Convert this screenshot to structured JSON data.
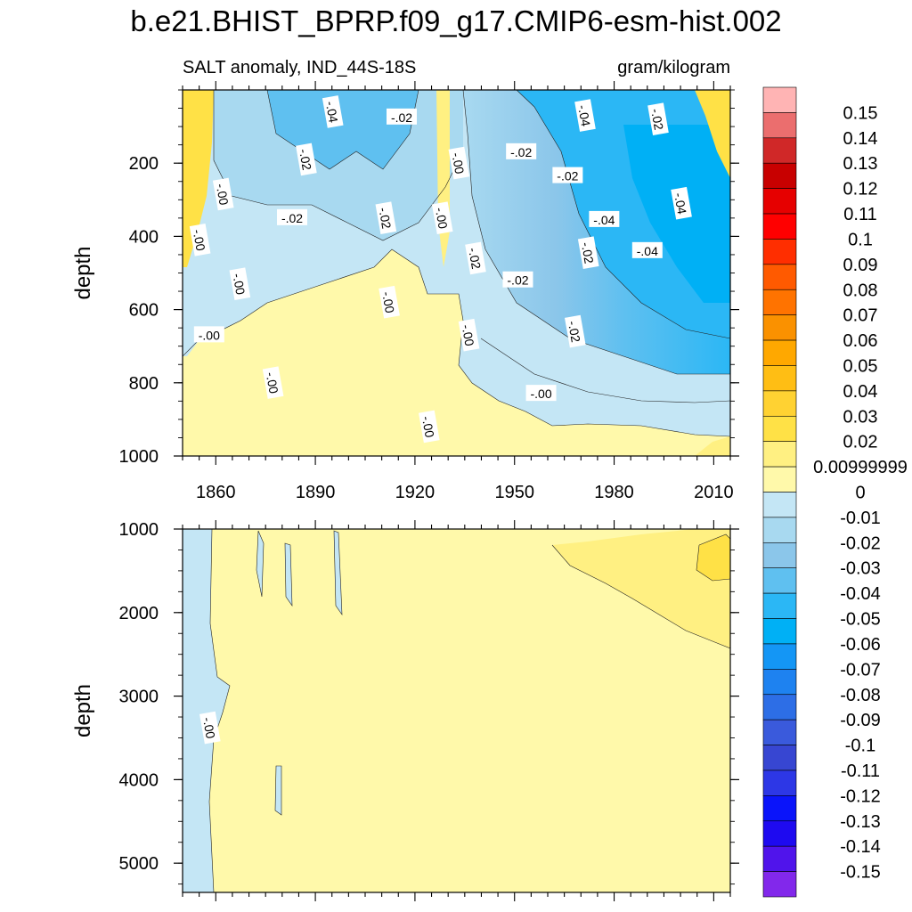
{
  "chart_data": {
    "type": "heatmap",
    "title": "b.e21.BHIST_BPRP.f09_g17.CMIP6-esm-hist.002",
    "subtitle_left": "SALT anomaly, IND_44S-18S",
    "subtitle_right": "gram/kilogram",
    "x_range": [
      1850,
      2015
    ],
    "x_ticks": [
      1860,
      1890,
      1920,
      1950,
      1980,
      2010
    ],
    "x_tick_labels": [
      "1860",
      "1890",
      "1920",
      "1950",
      "1980",
      "2010"
    ],
    "panels": [
      {
        "name": "upper",
        "ylabel": "depth",
        "y_range": [
          0,
          1000
        ],
        "y_ticks": [
          200,
          400,
          600,
          800,
          1000
        ],
        "y_tick_labels": [
          "200",
          "400",
          "600",
          "800",
          "1000"
        ]
      },
      {
        "name": "lower",
        "ylabel": "depth",
        "y_range": [
          1000,
          5350
        ],
        "y_ticks": [
          1000,
          2000,
          3000,
          4000,
          5000
        ],
        "y_tick_labels": [
          "1000",
          "2000",
          "3000",
          "4000",
          "5000"
        ]
      }
    ],
    "contour_labels_upper": [
      {
        "text": "-.04",
        "x": 1895,
        "y": 60
      },
      {
        "text": "-.02",
        "x": 1916,
        "y": 75
      },
      {
        "text": "-.04",
        "x": 1971,
        "y": 70
      },
      {
        "text": "-.02",
        "x": 1993,
        "y": 80
      },
      {
        "text": "-.02",
        "x": 1952,
        "y": 170
      },
      {
        "text": "-.02",
        "x": 1887,
        "y": 190
      },
      {
        "text": "-.00",
        "x": 1933,
        "y": 200
      },
      {
        "text": "-.02",
        "x": 1966,
        "y": 235
      },
      {
        "text": "-.04",
        "x": 2000,
        "y": 310
      },
      {
        "text": "-.00",
        "x": 1862,
        "y": 285
      },
      {
        "text": "-.02",
        "x": 1883,
        "y": 350
      },
      {
        "text": "-.02",
        "x": 1911,
        "y": 350
      },
      {
        "text": "-.00",
        "x": 1928,
        "y": 350
      },
      {
        "text": "-.04",
        "x": 1977,
        "y": 355
      },
      {
        "text": "-.00",
        "x": 1855,
        "y": 410
      },
      {
        "text": "-.02",
        "x": 1972,
        "y": 445
      },
      {
        "text": "-.04",
        "x": 1990,
        "y": 440
      },
      {
        "text": "-.02",
        "x": 1938,
        "y": 460
      },
      {
        "text": "-.00",
        "x": 1867,
        "y": 530
      },
      {
        "text": "-.02",
        "x": 1951,
        "y": 520
      },
      {
        "text": "-.00",
        "x": 1912,
        "y": 580
      },
      {
        "text": "-.02",
        "x": 1968,
        "y": 660
      },
      {
        "text": "-.00",
        "x": 1858,
        "y": 670
      },
      {
        "text": "-.00",
        "x": 1936,
        "y": 670
      },
      {
        "text": "-.00",
        "x": 1877,
        "y": 800
      },
      {
        "text": "-.00",
        "x": 1958,
        "y": 830
      },
      {
        "text": "-.00",
        "x": 1924,
        "y": 920
      }
    ],
    "contour_labels_lower": [
      {
        "text": "-.00",
        "x": 1858,
        "y": 3380
      }
    ],
    "colorbar": {
      "label_values": [
        "0.15",
        "0.14",
        "0.13",
        "0.12",
        "0.11",
        "0.1",
        "0.09",
        "0.08",
        "0.07",
        "0.06",
        "0.05",
        "0.04",
        "0.03",
        "0.02",
        "0.00999999",
        "0",
        "-0.01",
        "-0.02",
        "-0.03",
        "-0.04",
        "-0.05",
        "-0.06",
        "-0.07",
        "-0.08",
        "-0.09",
        "-0.1",
        "-0.11",
        "-0.12",
        "-0.13",
        "-0.14",
        "-0.15"
      ],
      "colors": [
        "#FFB4B4",
        "#EB6E6E",
        "#D02828",
        "#C80000",
        "#E60000",
        "#FF0000",
        "#FF2E00",
        "#FF5A00",
        "#FF7300",
        "#FA9100",
        "#FFA800",
        "#FFBE14",
        "#FFD232",
        "#FFE146",
        "#FFF082",
        "#FFF9AA",
        "#C4E6F5",
        "#A8D9F0",
        "#8BC6EA",
        "#5FC0F0",
        "#2BB7F5",
        "#00B0F5",
        "#1496F5",
        "#1E82F0",
        "#2D6EE6",
        "#3A5ADC",
        "#3746D2",
        "#2D37E6",
        "#0A14FA",
        "#1E0AF0",
        "#5014EB",
        "#8228EB"
      ]
    }
  }
}
